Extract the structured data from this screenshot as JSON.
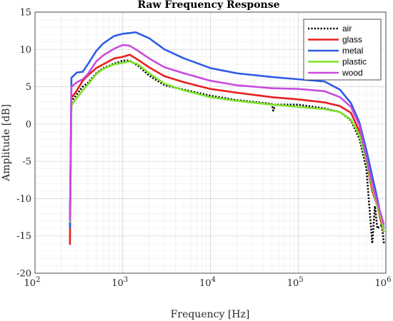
{
  "chart_data": {
    "type": "line",
    "title": "Raw Frequency Response",
    "xlabel": "Frequency [Hz]",
    "ylabel": "Amplitude [dB]",
    "x_scale": "log",
    "xlim": [
      100,
      1000000
    ],
    "ylim": [
      -20,
      15
    ],
    "x_ticks": [
      {
        "base": "10",
        "exp": "2",
        "value": 100
      },
      {
        "base": "10",
        "exp": "3",
        "value": 1000
      },
      {
        "base": "10",
        "exp": "4",
        "value": 10000
      },
      {
        "base": "10",
        "exp": "5",
        "value": 100000
      },
      {
        "base": "10",
        "exp": "6",
        "value": 1000000
      }
    ],
    "y_ticks": [
      "-20",
      "-15",
      "-10",
      "-5",
      "0",
      "5",
      "10",
      "15"
    ],
    "grid": true,
    "minor_grid": true,
    "legend_position": "top-right",
    "series": [
      {
        "name": "air",
        "color": "#000000",
        "style": "dotted",
        "points": [
          [
            250,
            -13.5
          ],
          [
            260,
            3.0
          ],
          [
            300,
            4.0
          ],
          [
            350,
            5.0
          ],
          [
            400,
            5.5
          ],
          [
            500,
            6.8
          ],
          [
            600,
            7.5
          ],
          [
            700,
            7.8
          ],
          [
            800,
            8.1
          ],
          [
            900,
            8.3
          ],
          [
            1000,
            8.5
          ],
          [
            1200,
            8.5
          ],
          [
            1500,
            7.8
          ],
          [
            2000,
            6.5
          ],
          [
            3000,
            5.2
          ],
          [
            5000,
            4.6
          ],
          [
            10000,
            3.8
          ],
          [
            20000,
            3.2
          ],
          [
            50000,
            2.7
          ],
          [
            52000,
            1.8
          ],
          [
            55000,
            2.6
          ],
          [
            100000,
            2.6
          ],
          [
            200000,
            2.1
          ],
          [
            300000,
            1.6
          ],
          [
            400000,
            0.5
          ],
          [
            500000,
            -2.0
          ],
          [
            600000,
            -6.0
          ],
          [
            700000,
            -16.0
          ],
          [
            750000,
            -11.0
          ],
          [
            800000,
            -14.0
          ],
          [
            900000,
            -13.5
          ],
          [
            950000,
            -16.0
          ]
        ]
      },
      {
        "name": "glass",
        "color": "#e8201f",
        "style": "solid",
        "points": [
          [
            250,
            -16.2
          ],
          [
            260,
            3.5
          ],
          [
            300,
            4.5
          ],
          [
            350,
            5.8
          ],
          [
            400,
            6.5
          ],
          [
            500,
            7.5
          ],
          [
            600,
            8.0
          ],
          [
            800,
            8.8
          ],
          [
            1000,
            9.0
          ],
          [
            1200,
            9.3
          ],
          [
            1500,
            8.6
          ],
          [
            2000,
            7.6
          ],
          [
            3000,
            6.4
          ],
          [
            5000,
            5.6
          ],
          [
            10000,
            4.7
          ],
          [
            20000,
            4.2
          ],
          [
            50000,
            3.6
          ],
          [
            100000,
            3.3
          ],
          [
            200000,
            2.9
          ],
          [
            300000,
            2.4
          ],
          [
            400000,
            1.5
          ],
          [
            500000,
            -1.0
          ],
          [
            600000,
            -5.0
          ],
          [
            700000,
            -9.0
          ],
          [
            800000,
            -11.0
          ],
          [
            900000,
            -13.5
          ],
          [
            950000,
            -14.5
          ]
        ]
      },
      {
        "name": "metal",
        "color": "#2f5be6",
        "style": "solid",
        "points": [
          [
            250,
            -14.0
          ],
          [
            260,
            6.2
          ],
          [
            300,
            6.9
          ],
          [
            350,
            7.0
          ],
          [
            400,
            8.0
          ],
          [
            500,
            9.8
          ],
          [
            600,
            10.8
          ],
          [
            800,
            11.8
          ],
          [
            1000,
            12.1
          ],
          [
            1200,
            12.2
          ],
          [
            1400,
            12.3
          ],
          [
            2000,
            11.5
          ],
          [
            3000,
            10.0
          ],
          [
            5000,
            8.8
          ],
          [
            10000,
            7.5
          ],
          [
            20000,
            6.8
          ],
          [
            50000,
            6.3
          ],
          [
            100000,
            6.0
          ],
          [
            200000,
            5.7
          ],
          [
            300000,
            4.6
          ],
          [
            400000,
            2.8
          ],
          [
            500000,
            0.2
          ],
          [
            600000,
            -3.5
          ],
          [
            700000,
            -7.0
          ],
          [
            800000,
            -10.0
          ],
          [
            900000,
            -13.0
          ],
          [
            950000,
            -14.0
          ]
        ]
      },
      {
        "name": "plastic",
        "color": "#7be22a",
        "style": "solid",
        "points": [
          [
            250,
            -13.2
          ],
          [
            260,
            2.5
          ],
          [
            300,
            3.5
          ],
          [
            350,
            4.5
          ],
          [
            400,
            5.3
          ],
          [
            500,
            6.7
          ],
          [
            600,
            7.4
          ],
          [
            800,
            8.0
          ],
          [
            1000,
            8.2
          ],
          [
            1200,
            8.4
          ],
          [
            1500,
            8.0
          ],
          [
            2000,
            6.8
          ],
          [
            3000,
            5.4
          ],
          [
            5000,
            4.5
          ],
          [
            10000,
            3.6
          ],
          [
            20000,
            3.1
          ],
          [
            50000,
            2.6
          ],
          [
            100000,
            2.3
          ],
          [
            200000,
            2.0
          ],
          [
            300000,
            1.6
          ],
          [
            400000,
            0.6
          ],
          [
            500000,
            -1.5
          ],
          [
            600000,
            -5.0
          ],
          [
            700000,
            -8.5
          ],
          [
            800000,
            -11.0
          ],
          [
            900000,
            -13.0
          ],
          [
            950000,
            -14.5
          ]
        ]
      },
      {
        "name": "wood",
        "color": "#c94be0",
        "style": "solid",
        "points": [
          [
            250,
            -13.0
          ],
          [
            260,
            5.0
          ],
          [
            300,
            5.6
          ],
          [
            350,
            6.0
          ],
          [
            400,
            6.7
          ],
          [
            500,
            8.4
          ],
          [
            600,
            9.2
          ],
          [
            800,
            10.1
          ],
          [
            1000,
            10.6
          ],
          [
            1200,
            10.5
          ],
          [
            1500,
            9.8
          ],
          [
            2000,
            8.8
          ],
          [
            3000,
            7.6
          ],
          [
            5000,
            6.8
          ],
          [
            10000,
            5.8
          ],
          [
            20000,
            5.2
          ],
          [
            50000,
            4.8
          ],
          [
            100000,
            4.7
          ],
          [
            200000,
            4.4
          ],
          [
            300000,
            3.6
          ],
          [
            400000,
            2.3
          ],
          [
            500000,
            -0.2
          ],
          [
            600000,
            -4.5
          ],
          [
            700000,
            -8.0
          ],
          [
            800000,
            -10.5
          ],
          [
            900000,
            -12.5
          ],
          [
            950000,
            -13.5
          ]
        ]
      }
    ]
  }
}
